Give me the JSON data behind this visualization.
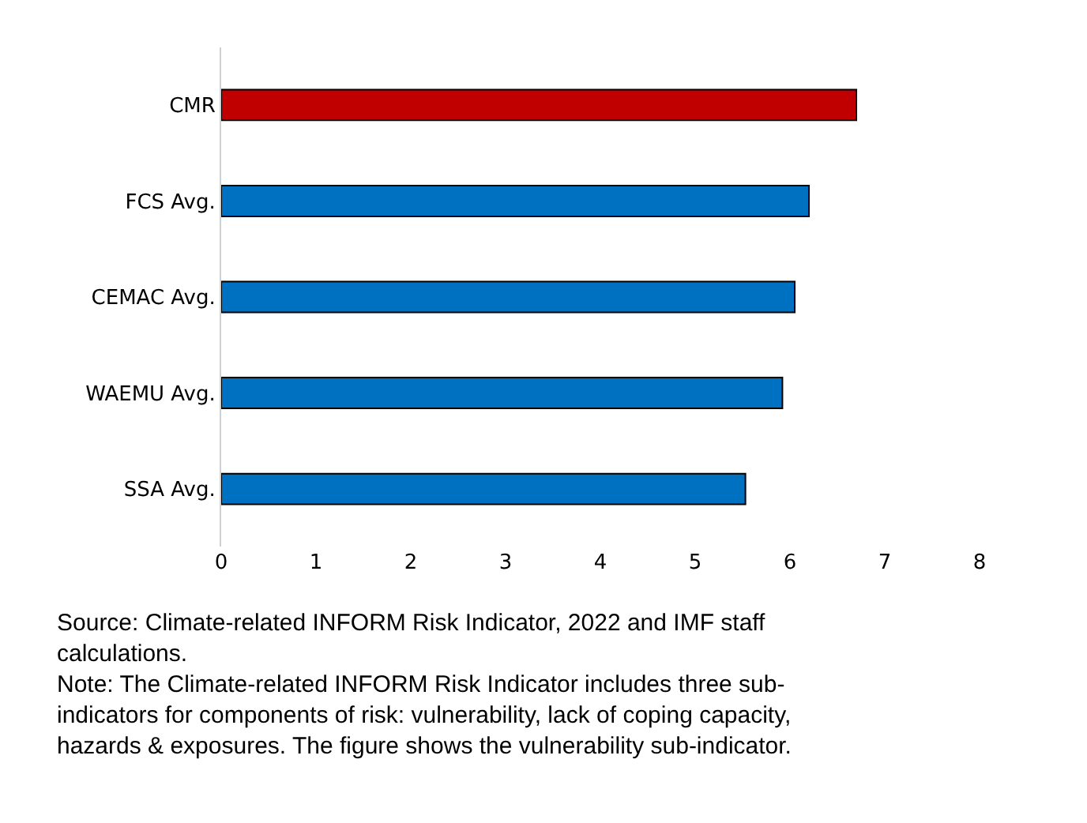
{
  "chart_data": {
    "type": "bar",
    "orientation": "horizontal",
    "categories": [
      "CMR",
      "FCS Avg.",
      "CEMAC Avg.",
      "WAEMU Avg.",
      "SSA Avg."
    ],
    "values": [
      6.7,
      6.2,
      6.05,
      5.92,
      5.53
    ],
    "colors": [
      "#c00000",
      "#0070c0",
      "#0070c0",
      "#0070c0",
      "#0070c0"
    ],
    "xlim": [
      0,
      8
    ],
    "xticks": [
      0,
      1,
      2,
      3,
      4,
      5,
      6,
      7,
      8
    ],
    "annotations": [
      "Source: Climate-related INFORM Risk Indicator, 2022 and IMF staff calculations.",
      "Note: The Climate-related INFORM Risk Indicator includes three sub-indicators for components of risk: vulnerability, lack of coping capacity, hazards & exposures. The figure shows the vulnerability sub-indicator."
    ]
  }
}
